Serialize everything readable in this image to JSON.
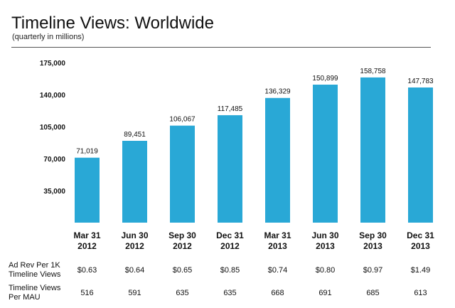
{
  "header": {
    "title": "Timeline Views: Worldwide",
    "subtitle": "(quarterly in millions)"
  },
  "chart_data": {
    "type": "bar",
    "title": "Timeline Views: Worldwide",
    "subtitle": "(quarterly in millions)",
    "categories": [
      [
        "Mar 31",
        "2012"
      ],
      [
        "Jun 30",
        "2012"
      ],
      [
        "Sep 30",
        "2012"
      ],
      [
        "Dec 31",
        "2012"
      ],
      [
        "Mar 31",
        "2013"
      ],
      [
        "Jun 30",
        "2013"
      ],
      [
        "Sep 30",
        "2013"
      ],
      [
        "Dec 31",
        "2013"
      ]
    ],
    "values": [
      71019,
      89451,
      106067,
      117485,
      136329,
      150899,
      158758,
      147783
    ],
    "value_labels": [
      "71,019",
      "89,451",
      "106,067",
      "117,485",
      "136,329",
      "150,899",
      "158,758",
      "147,783"
    ],
    "y_ticks": [
      35000,
      70000,
      105000,
      140000,
      175000
    ],
    "y_tick_labels": [
      "35,000",
      "70,000",
      "105,000",
      "140,000",
      "175,000"
    ],
    "ylim": [
      0,
      175000
    ],
    "grid": false,
    "legend": "none",
    "xlabel": "",
    "ylabel": "",
    "bar_color": "#29a8d6"
  },
  "table": {
    "rows": [
      {
        "label_lines": [
          "Ad Rev Per 1K",
          "Timeline Views"
        ],
        "values": [
          "$0.63",
          "$0.64",
          "$0.65",
          "$0.85",
          "$0.74",
          "$0.80",
          "$0.97",
          "$1.49"
        ]
      },
      {
        "label_lines": [
          "Timeline Views",
          "Per MAU"
        ],
        "values": [
          "516",
          "591",
          "635",
          "635",
          "668",
          "691",
          "685",
          "613"
        ]
      }
    ]
  }
}
